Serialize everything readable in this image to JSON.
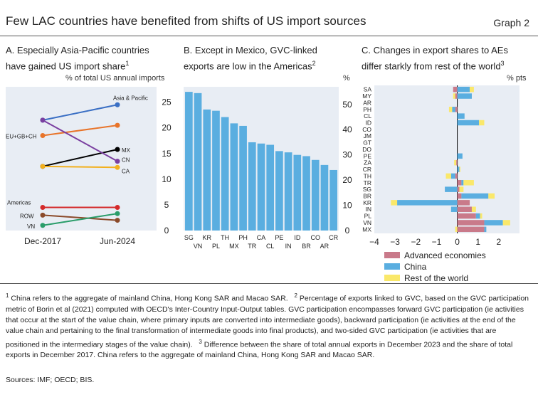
{
  "header": {
    "title": "Few LAC countries have benefited from shifts of US import sources",
    "graph_label": "Graph 2"
  },
  "panels": {
    "a": {
      "title_line1": "A. Especially Asia-Pacific countries",
      "title_line2": "have gained US import share",
      "sup": "1",
      "unit": "% of total US annual imports"
    },
    "b": {
      "title_line1": "B. Except in Mexico, GVC-linked",
      "title_line2": "exports are low in the Americas",
      "sup": "2",
      "unit": "%"
    },
    "c": {
      "title_line1": "C. Changes in export shares to AEs",
      "title_line2": "differ starkly from rest of the world",
      "sup": "3",
      "unit": "% pts"
    }
  },
  "chart_data": [
    {
      "type": "line",
      "x": [
        "Dec-2017",
        "Jun-2024"
      ],
      "ylim": [
        0,
        28
      ],
      "yticks": [
        0,
        5,
        10,
        15,
        20,
        25
      ],
      "series": [
        {
          "name": "Asia & Pacific",
          "values": [
            21.5,
            24.5
          ],
          "color": "#3a6fc4"
        },
        {
          "name": "EU+GB+CH",
          "values": [
            18.5,
            20.5
          ],
          "color": "#e8742a"
        },
        {
          "name": "MX",
          "values": [
            12.5,
            15.8
          ],
          "color": "#000000"
        },
        {
          "name": "CN",
          "values": [
            21.5,
            13.5
          ],
          "color": "#7a3fa0"
        },
        {
          "name": "CA",
          "values": [
            12.5,
            12.3
          ],
          "color": "#f2b01e"
        },
        {
          "name": "Americas",
          "values": [
            4.5,
            4.5
          ],
          "color": "#d42a2a"
        },
        {
          "name": "ROW",
          "values": [
            3.0,
            2.0
          ],
          "color": "#8b4a2a"
        },
        {
          "name": "VN",
          "values": [
            1.0,
            3.3
          ],
          "color": "#2a9d6a"
        }
      ],
      "left_labels": [
        "EU+GB+CH",
        "Americas",
        "ROW",
        "VN"
      ],
      "right_labels": [
        "Asia & Pacific",
        "MX",
        "CN",
        "CA"
      ]
    },
    {
      "type": "bar",
      "categories": [
        "SG",
        "VN",
        "KR",
        "PL",
        "TH",
        "MX",
        "PH",
        "TR",
        "CA",
        "CL",
        "PE",
        "IN",
        "ID",
        "BR",
        "CO",
        "AR",
        "CR"
      ],
      "values": [
        55,
        54.5,
        48,
        47.5,
        45,
        42.5,
        41.5,
        35,
        34.5,
        34,
        31.5,
        31,
        30,
        29.5,
        28,
        26,
        24
      ],
      "ylim": [
        0,
        57
      ],
      "yticks": [
        0,
        10,
        20,
        30,
        40,
        50
      ],
      "color": "#5aaee0"
    },
    {
      "type": "bar",
      "orientation": "horizontal",
      "stacked": true,
      "categories": [
        "SA",
        "MY",
        "AR",
        "PH",
        "CL",
        "ID",
        "CO",
        "JM",
        "GT",
        "DO",
        "PE",
        "ZA",
        "CR",
        "TH",
        "TR",
        "SG",
        "BR",
        "KR",
        "IN",
        "PL",
        "VN",
        "MX"
      ],
      "xlim": [
        -4,
        3
      ],
      "xticks": [
        -4,
        -3,
        -2,
        -1,
        0,
        1,
        2
      ],
      "series": [
        {
          "name": "Advanced economies",
          "color": "#c97a8a",
          "values": [
            -0.2,
            -0.1,
            0,
            -0.1,
            0,
            0,
            0,
            0,
            0,
            0,
            0,
            -0.05,
            0,
            -0.1,
            0.2,
            0.1,
            0.2,
            0.6,
            0.7,
            0.9,
            1.3,
            1.3
          ]
        },
        {
          "name": "China",
          "color": "#5aaee0",
          "values": [
            0.6,
            0.7,
            0,
            -0.15,
            0.35,
            1.05,
            0,
            0,
            0,
            0,
            0.25,
            0,
            0.1,
            -0.2,
            0.1,
            -0.6,
            1.3,
            -2.9,
            -0.3,
            0.2,
            0.9,
            0.1
          ]
        },
        {
          "name": "Rest of the world",
          "color": "#fae86a",
          "values": [
            0.2,
            -0.1,
            0,
            -0.15,
            0,
            0.25,
            0,
            0,
            0,
            0,
            0,
            -0.1,
            0.05,
            -0.25,
            0.5,
            0.2,
            0.3,
            -0.3,
            0.2,
            0.1,
            0.35,
            -0.1
          ]
        }
      ]
    }
  ],
  "footnotes": {
    "n1": "China refers to the aggregate of mainland China, Hong Kong SAR and Macao SAR.",
    "n2": "Percentage of exports linked to GVC, based on the GVC participation metric of Borin et al (2021) computed with OECD's Inter-Country Input-Output tables. GVC participation encompasses forward GVC participation (ie activities that occur at the start of the value chain, where primary inputs are converted into intermediate goods), backward participation (ie activities at the end of the value chain and pertaining to the final transformation of intermediate goods into final products), and two-sided GVC participation (ie activities that are positioned in the intermediary stages of the value chain).",
    "n3": "Difference between the share of total annual exports in December 2023 and the share of total exports in December 2017. China refers to the aggregate of mainland China, Hong Kong SAR and Macao SAR.",
    "sources": "Sources: IMF; OECD; BIS."
  }
}
